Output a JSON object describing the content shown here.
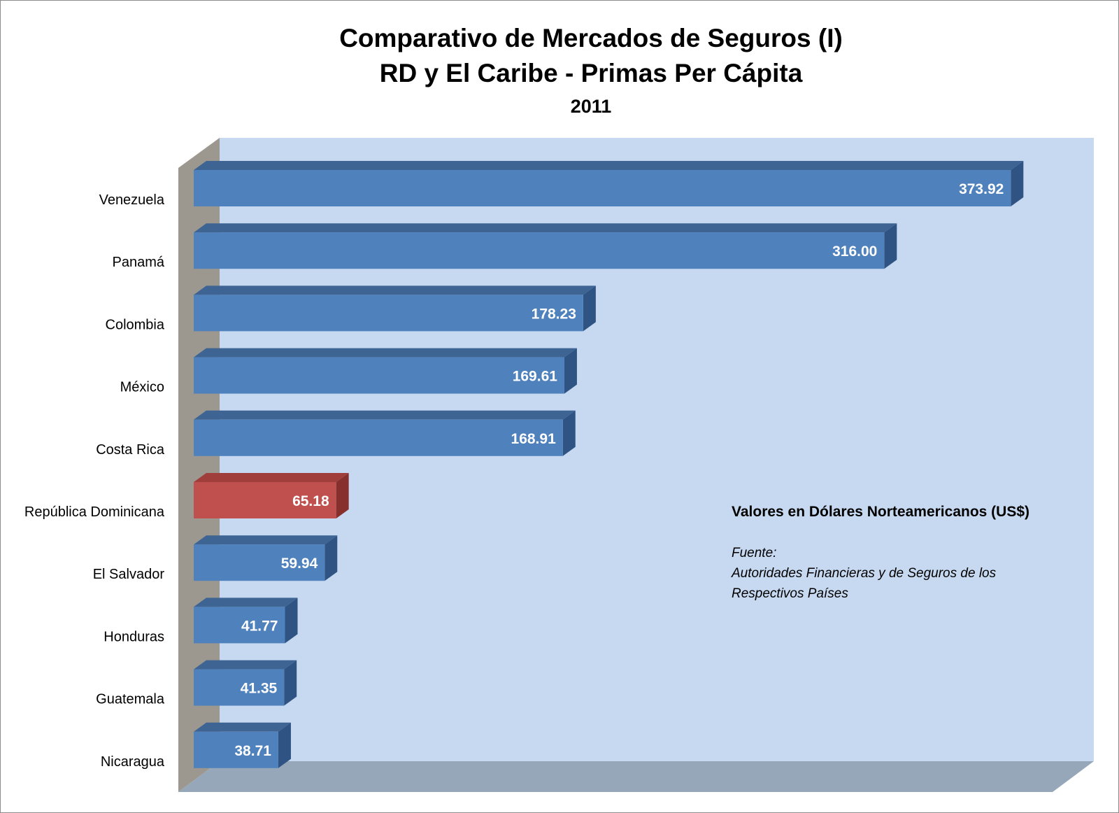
{
  "chart_data": {
    "type": "bar",
    "orientation": "horizontal",
    "title": "Comparativo de Mercados de Seguros (I)",
    "subtitle": "RD y El Caribe - Primas Per Cápita",
    "year": "2011",
    "categories": [
      "Venezuela",
      "Panamá",
      "Colombia",
      "México",
      "Costa Rica",
      "República Dominicana",
      "El Salvador",
      "Honduras",
      "Guatemala",
      "Nicaragua"
    ],
    "values": [
      373.92,
      316.0,
      178.23,
      169.61,
      168.91,
      65.18,
      59.94,
      41.77,
      41.35,
      38.71
    ],
    "value_labels": [
      "373.92",
      "316.00",
      "178.23",
      "169.61",
      "168.91",
      "65.18",
      "59.94",
      "41.77",
      "41.35",
      "38.71"
    ],
    "highlight_category": "República Dominicana",
    "xlim": [
      0,
      400
    ],
    "grid": false,
    "legend": "none",
    "colors": {
      "bar": "#4f81bd",
      "bar_top": "#3e6494",
      "bar_side": "#2f5483",
      "highlight": "#c0504d",
      "highlight_top": "#9f3e3b",
      "highlight_side": "#872f2d",
      "back_wall": "#c6d9f1",
      "side_wall": "#9c9890",
      "floor": "#95a7b8"
    }
  },
  "annotation": {
    "units": "Valores en Dólares Norteamericanos (US$)",
    "source_label": "Fuente:",
    "source_line1": "Autoridades Financieras y de Seguros de los",
    "source_line2": "Respectivos Países"
  }
}
